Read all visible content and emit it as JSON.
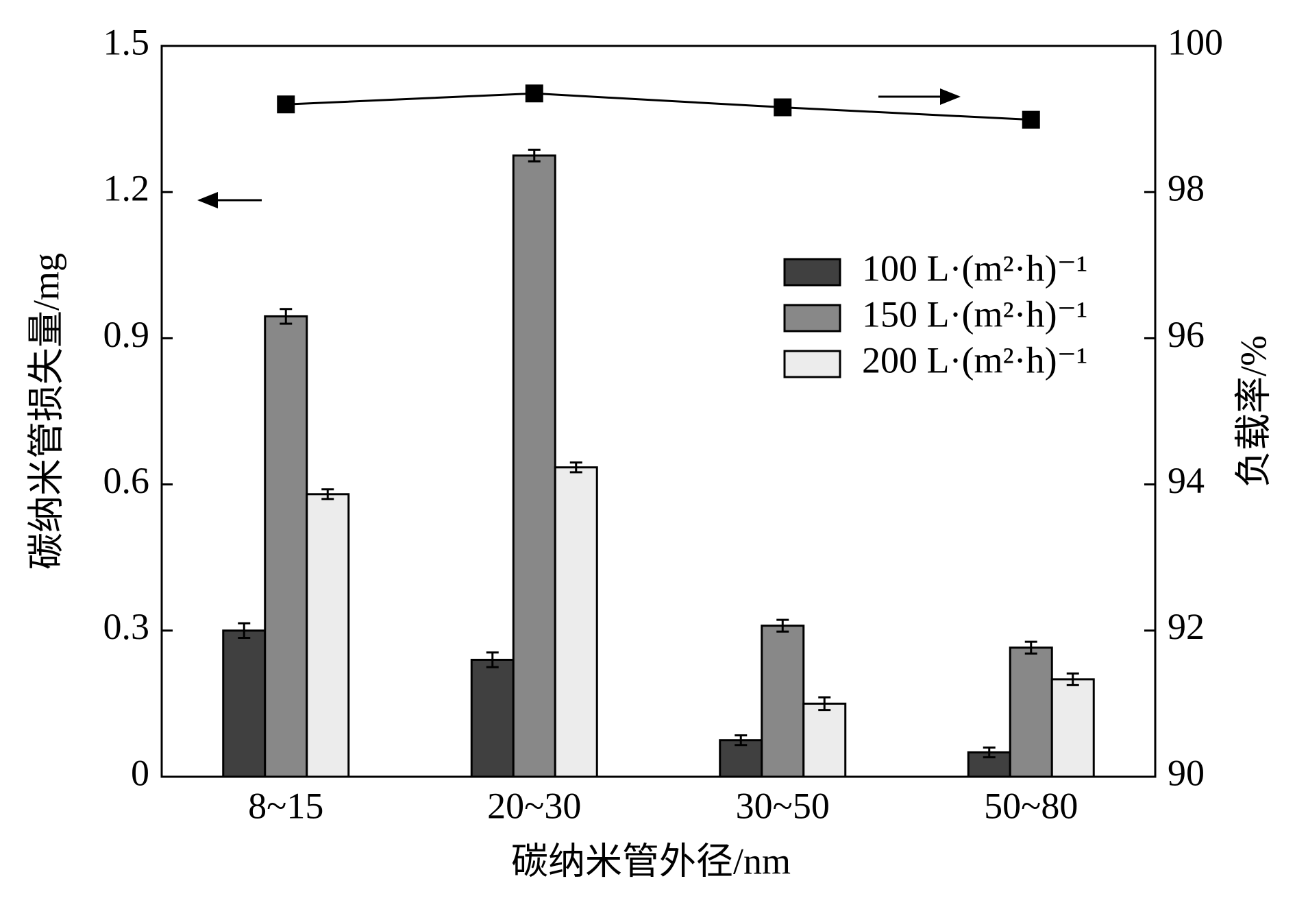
{
  "chart_data": {
    "type": "bar",
    "xlabel": "碳纳米管外径/nm",
    "ylabel": "碳纳米管损失量/mg",
    "y2label": "负载率/%",
    "categories": [
      "8~15",
      "20~30",
      "30~50",
      "50~80"
    ],
    "series": [
      {
        "name": "100 L·(m²·h)⁻¹",
        "color": "#404040",
        "values": [
          0.3,
          0.24,
          0.075,
          0.05
        ],
        "errors": [
          0.015,
          0.015,
          0.01,
          0.01
        ]
      },
      {
        "name": "150 L·(m²·h)⁻¹",
        "color": "#888888",
        "values": [
          0.945,
          1.275,
          0.31,
          0.265
        ],
        "errors": [
          0.015,
          0.012,
          0.012,
          0.012
        ]
      },
      {
        "name": "200 L·(m²·h)⁻¹",
        "color": "#ececec",
        "values": [
          0.58,
          0.635,
          0.15,
          0.2
        ],
        "errors": [
          0.01,
          0.01,
          0.013,
          0.012
        ]
      },
      {
        "type": "line",
        "axis": "y2",
        "color": "#000000",
        "values": [
          99.2,
          99.35,
          99.16,
          98.99
        ]
      }
    ],
    "ylim": [
      0,
      1.5
    ],
    "yticks": [
      0,
      0.3,
      0.6,
      0.9,
      1.2,
      1.5
    ],
    "y2lim": [
      90,
      100
    ],
    "y2ticks": [
      90,
      92,
      94,
      96,
      98,
      100
    ],
    "legend": "upper right"
  }
}
